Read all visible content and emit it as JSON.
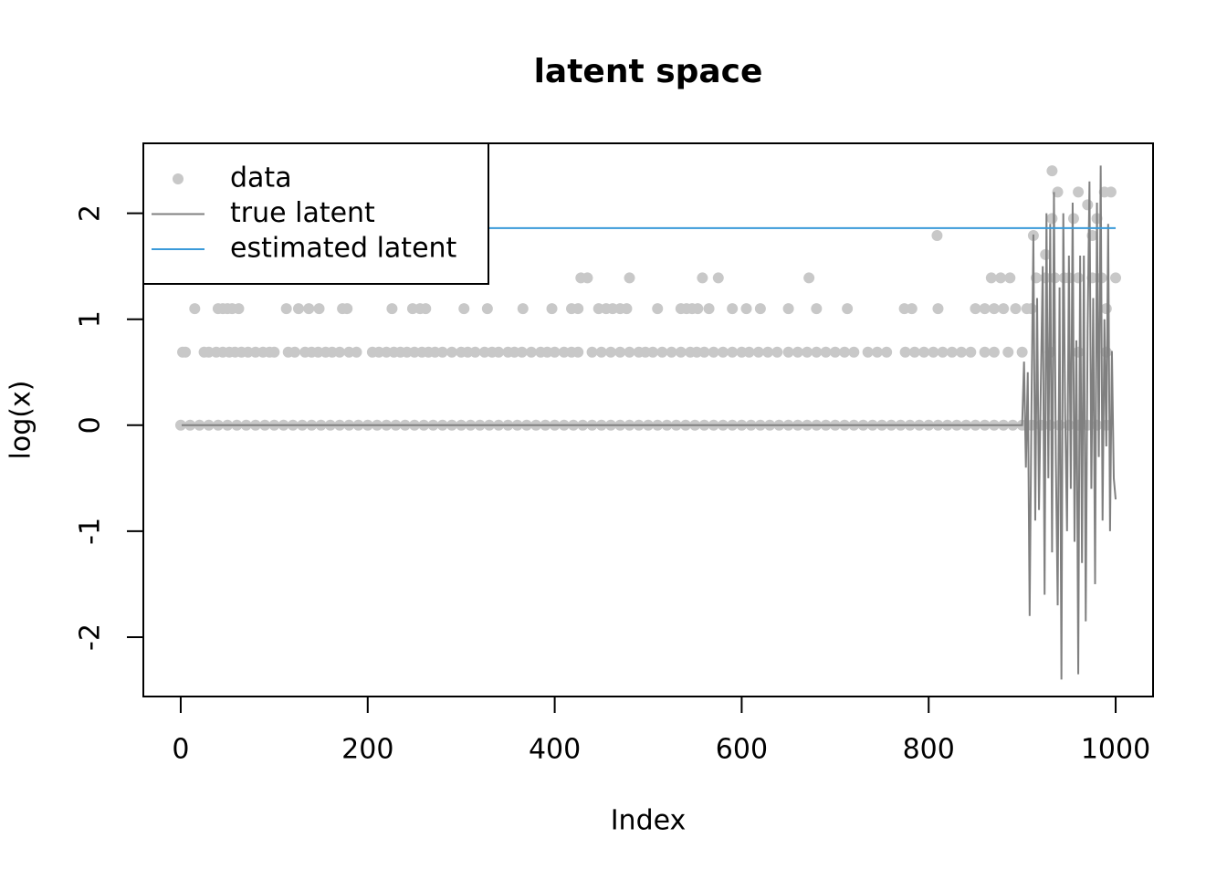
{
  "chart_data": {
    "type": "scatter",
    "title": "latent space",
    "xlabel": "Index",
    "ylabel": "log(x)",
    "xlim": [
      -40,
      1040
    ],
    "ylim": [
      -2.56,
      2.66
    ],
    "xticks": [
      0,
      200,
      400,
      600,
      800,
      1000
    ],
    "yticks": [
      -2,
      -1,
      0,
      1,
      2
    ],
    "legend": "topleft",
    "series": [
      {
        "name": "data",
        "type": "scatter",
        "color": "#c8c8c8",
        "x": [
          0,
          10,
          20,
          30,
          40,
          50,
          60,
          70,
          80,
          90,
          100,
          110,
          120,
          130,
          140,
          150,
          160,
          170,
          180,
          190,
          200,
          210,
          220,
          230,
          240,
          250,
          260,
          270,
          280,
          290,
          300,
          310,
          320,
          330,
          340,
          350,
          360,
          370,
          380,
          390,
          400,
          410,
          420,
          430,
          440,
          450,
          460,
          470,
          480,
          490,
          500,
          510,
          520,
          530,
          540,
          550,
          560,
          570,
          580,
          590,
          600,
          610,
          620,
          630,
          640,
          650,
          660,
          670,
          680,
          690,
          700,
          710,
          720,
          730,
          740,
          750,
          760,
          770,
          780,
          790,
          800,
          810,
          820,
          830,
          840,
          850,
          860,
          870,
          880,
          890,
          900,
          910,
          920,
          930,
          940,
          950,
          960,
          970,
          980,
          990,
          2,
          5,
          25,
          30,
          38,
          45,
          52,
          58,
          65,
          72,
          80,
          88,
          95,
          100,
          115,
          122,
          133,
          140,
          147,
          155,
          162,
          170,
          180,
          188,
          205,
          212,
          220,
          228,
          235,
          242,
          250,
          258,
          265,
          272,
          280,
          290,
          300,
          307,
          315,
          325,
          333,
          340,
          350,
          357,
          365,
          375,
          385,
          392,
          400,
          410,
          418,
          425,
          440,
          450,
          460,
          470,
          480,
          490,
          497,
          505,
          515,
          525,
          535,
          545,
          552,
          560,
          570,
          580,
          590,
          600,
          608,
          618,
          628,
          638,
          650,
          660,
          670,
          680,
          690,
          700,
          710,
          720,
          735,
          745,
          755,
          775,
          785,
          795,
          805,
          815,
          825,
          835,
          845,
          860,
          870,
          885,
          900,
          930,
          960,
          990,
          15,
          40,
          45,
          50,
          55,
          62,
          113,
          126,
          137,
          148,
          173,
          178,
          226,
          248,
          256,
          262,
          303,
          328,
          366,
          397,
          418,
          425,
          447,
          455,
          462,
          470,
          477,
          510,
          535,
          541,
          547,
          553,
          565,
          590,
          605,
          620,
          650,
          680,
          713,
          774,
          782,
          810,
          850,
          860,
          870,
          880,
          893,
          905,
          910,
          990,
          428,
          435,
          480,
          558,
          575,
          672,
          867,
          877,
          887,
          915,
          925,
          935,
          945,
          950,
          960,
          975,
          985,
          1000,
          809,
          912,
          975,
          925,
          932,
          955,
          980,
          970,
          938,
          960,
          988,
          995,
          932
        ],
        "values": [
          0,
          0,
          0,
          0,
          0,
          0,
          0,
          0,
          0,
          0,
          0,
          0,
          0,
          0,
          0,
          0,
          0,
          0,
          0,
          0,
          0,
          0,
          0,
          0,
          0,
          0,
          0,
          0,
          0,
          0,
          0,
          0,
          0,
          0,
          0,
          0,
          0,
          0,
          0,
          0,
          0,
          0,
          0,
          0,
          0,
          0,
          0,
          0,
          0,
          0,
          0,
          0,
          0,
          0,
          0,
          0,
          0,
          0,
          0,
          0,
          0,
          0,
          0,
          0,
          0,
          0,
          0,
          0,
          0,
          0,
          0,
          0,
          0,
          0,
          0,
          0,
          0,
          0,
          0,
          0,
          0,
          0,
          0,
          0,
          0,
          0,
          0,
          0,
          0,
          0,
          0,
          0,
          0,
          0,
          0,
          0,
          0,
          0,
          0,
          0,
          0.69,
          0.69,
          0.69,
          0.69,
          0.69,
          0.69,
          0.69,
          0.69,
          0.69,
          0.69,
          0.69,
          0.69,
          0.69,
          0.69,
          0.69,
          0.69,
          0.69,
          0.69,
          0.69,
          0.69,
          0.69,
          0.69,
          0.69,
          0.69,
          0.69,
          0.69,
          0.69,
          0.69,
          0.69,
          0.69,
          0.69,
          0.69,
          0.69,
          0.69,
          0.69,
          0.69,
          0.69,
          0.69,
          0.69,
          0.69,
          0.69,
          0.69,
          0.69,
          0.69,
          0.69,
          0.69,
          0.69,
          0.69,
          0.69,
          0.69,
          0.69,
          0.69,
          0.69,
          0.69,
          0.69,
          0.69,
          0.69,
          0.69,
          0.69,
          0.69,
          0.69,
          0.69,
          0.69,
          0.69,
          0.69,
          0.69,
          0.69,
          0.69,
          0.69,
          0.69,
          0.69,
          0.69,
          0.69,
          0.69,
          0.69,
          0.69,
          0.69,
          0.69,
          0.69,
          0.69,
          0.69,
          0.69,
          0.69,
          0.69,
          0.69,
          0.69,
          0.69,
          0.69,
          0.69,
          0.69,
          0.69,
          0.69,
          0.69,
          0.69,
          0.69,
          0.69,
          0.69,
          0.69,
          0.69,
          0.69,
          1.1,
          1.1,
          1.1,
          1.1,
          1.1,
          1.1,
          1.1,
          1.1,
          1.1,
          1.1,
          1.1,
          1.1,
          1.1,
          1.1,
          1.1,
          1.1,
          1.1,
          1.1,
          1.1,
          1.1,
          1.1,
          1.1,
          1.1,
          1.1,
          1.1,
          1.1,
          1.1,
          1.1,
          1.1,
          1.1,
          1.1,
          1.1,
          1.1,
          1.1,
          1.1,
          1.1,
          1.1,
          1.1,
          1.1,
          1.1,
          1.1,
          1.1,
          1.1,
          1.1,
          1.1,
          1.1,
          1.1,
          1.1,
          1.1,
          1.1,
          1.39,
          1.39,
          1.39,
          1.39,
          1.39,
          1.39,
          1.39,
          1.39,
          1.39,
          1.39,
          1.39,
          1.39,
          1.39,
          1.39,
          1.39,
          1.39,
          1.39,
          1.39,
          1.79,
          1.79,
          1.79,
          1.61,
          1.95,
          1.95,
          1.95,
          2.08,
          2.2,
          2.2,
          2.2,
          2.2,
          2.4
        ]
      },
      {
        "name": "true latent",
        "type": "line",
        "color": "#808080",
        "x": [
          1,
          900,
          902,
          904,
          906,
          908,
          910,
          912,
          914,
          916,
          918,
          920,
          922,
          924,
          926,
          928,
          930,
          932,
          934,
          936,
          938,
          940,
          942,
          944,
          946,
          948,
          950,
          952,
          954,
          956,
          958,
          960,
          962,
          964,
          966,
          968,
          970,
          972,
          974,
          976,
          978,
          980,
          982,
          984,
          986,
          988,
          990,
          992,
          994,
          996,
          998,
          1000
        ],
        "values": [
          0,
          0,
          0.6,
          -0.4,
          0.5,
          -1.8,
          0.2,
          1.8,
          -0.9,
          1.2,
          -0.8,
          0.4,
          1.5,
          -1.6,
          2.0,
          -0.5,
          1.9,
          -1.2,
          2.2,
          -0.3,
          -1.7,
          1.3,
          -2.4,
          2.0,
          0.1,
          -1.0,
          1.6,
          -0.6,
          2.1,
          -1.1,
          0.8,
          -2.35,
          1.6,
          -1.3,
          1.6,
          -1.85,
          0.9,
          2.3,
          -0.6,
          1.2,
          -1.5,
          2.1,
          -0.3,
          2.45,
          -0.9,
          1.0,
          -0.2,
          1.9,
          -1.0,
          0.7,
          -0.5,
          -0.7
        ]
      },
      {
        "name": "estimated latent",
        "type": "line",
        "color": "#3a9ad9",
        "x": [
          1,
          1000
        ],
        "values": [
          1.86,
          1.86
        ]
      }
    ]
  }
}
